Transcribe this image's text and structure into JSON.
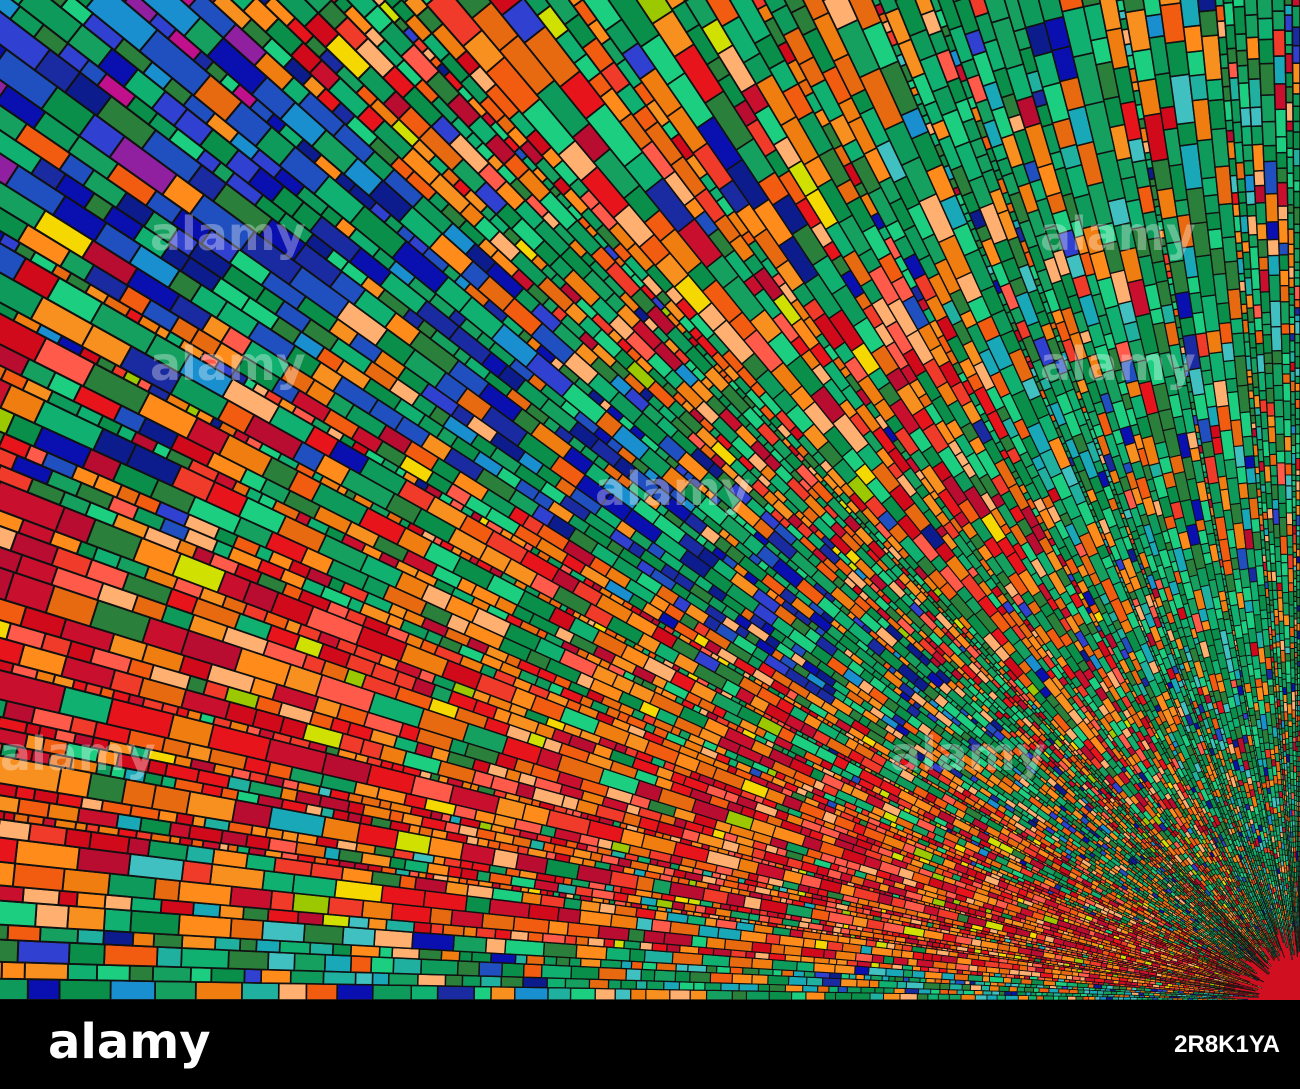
{
  "watermark": "alamy",
  "logo": "alamy",
  "image_id": "2R8K1YA"
}
